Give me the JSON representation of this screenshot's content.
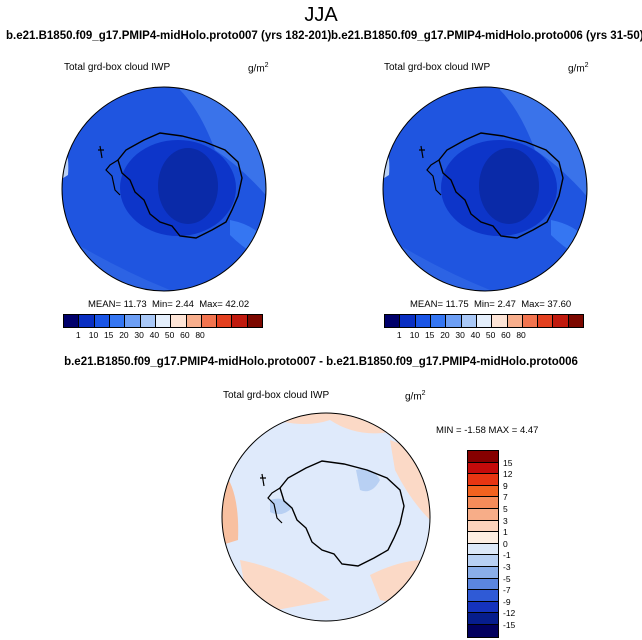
{
  "season": "JJA",
  "field_label": "Total grd-box cloud IWP",
  "units": {
    "base": "g/m",
    "exp": "2"
  },
  "panels": [
    {
      "title": "b.e21.B1850.f09_g17.PMIP4-midHolo.proto007 (yrs 182-201)",
      "stats": {
        "mean": "MEAN= 11.73",
        "min": "Min= 2.44",
        "max": "Max= 42.02"
      }
    },
    {
      "title": "b.e21.B1850.f09_g17.PMIP4-midHolo.proto006 (yrs 31-50)",
      "stats": {
        "mean": "MEAN= 11.75",
        "min": "Min= 2.47",
        "max": "Max= 37.60"
      }
    }
  ],
  "diff": {
    "title": "b.e21.B1850.f09_g17.PMIP4-midHolo.proto007 - b.e21.B1850.f09_g17.PMIP4-midHolo.proto006",
    "minmax": "MIN = -1.58 MAX = 4.47"
  },
  "abs_colorbar": {
    "colors": [
      "#00006b",
      "#0a2fc2",
      "#1a55e6",
      "#3576f2",
      "#6d9ff5",
      "#a9c8f7",
      "#e4eefb",
      "#fde4d6",
      "#f8ae8c",
      "#f2744f",
      "#e3401f",
      "#c01a0e",
      "#7c0800"
    ],
    "labels": [
      "1",
      "10",
      "15",
      "20",
      "30",
      "40",
      "50",
      "60",
      "80"
    ]
  },
  "diff_colorbar": {
    "colors": [
      "#860000",
      "#c50b0b",
      "#e83512",
      "#f2621f",
      "#f58c5a",
      "#f7ad88",
      "#fcd3bc",
      "#fdeee2",
      "#dce8f8",
      "#b8d0f3",
      "#8aaee9",
      "#5b86e0",
      "#2f5ad6",
      "#1533bd",
      "#061d8c",
      "#01005e"
    ],
    "labels": [
      "15",
      "12",
      "9",
      "7",
      "5",
      "3",
      "1",
      "0",
      "-1",
      "-3",
      "-5",
      "-7",
      "-9",
      "-12",
      "-15"
    ]
  },
  "colors": {
    "map_base": "#1f55e0",
    "map_dark": "#0d35c9",
    "map_mid": "#3068e6",
    "map_light": "#8fb2f0",
    "diff_base": "#dfeafb",
    "diff_pos": "#fbd9c6"
  }
}
